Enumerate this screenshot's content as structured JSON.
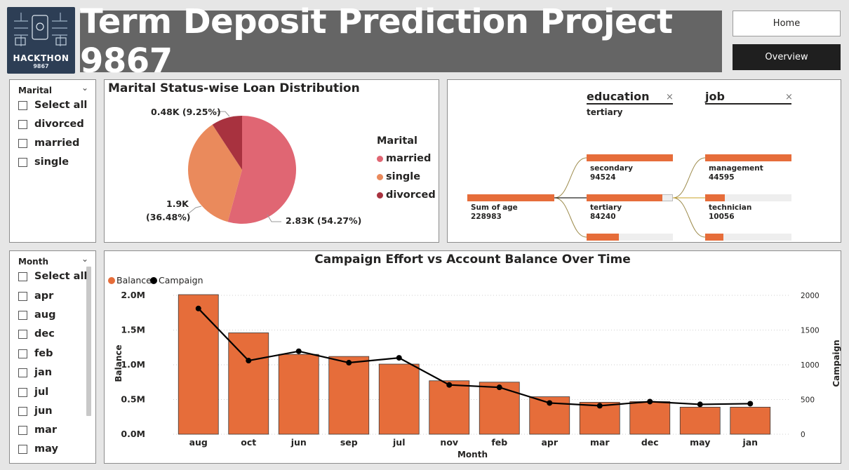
{
  "header": {
    "logo_text": "HACKTHON",
    "logo_sub": "9867",
    "title": "Term Deposit Prediction Project 9867",
    "nav": [
      {
        "label": "Home"
      },
      {
        "label": "Overview"
      }
    ]
  },
  "marital_slicer": {
    "title": "Marital",
    "items": [
      "Select all",
      "divorced",
      "married",
      "single"
    ]
  },
  "month_slicer": {
    "title": "Month",
    "items": [
      "Select all",
      "apr",
      "aug",
      "dec",
      "feb",
      "jan",
      "jul",
      "jun",
      "mar",
      "may"
    ]
  },
  "pie": {
    "title": "Marital Status-wise Loan Distribution",
    "legend_title": "Marital",
    "labels": {
      "married": "2.83K (54.27%)",
      "single_line1": "1.9K",
      "single_line2": "(36.48%)",
      "divorced": "0.48K (9.25%)"
    },
    "chart_data": {
      "type": "pie",
      "slices": [
        {
          "name": "married",
          "value": 2.83,
          "percent": 54.27,
          "color": "#e06673"
        },
        {
          "name": "single",
          "value": 1.9,
          "percent": 36.48,
          "color": "#ea8a5c"
        },
        {
          "name": "divorced",
          "value": 0.48,
          "percent": 9.25,
          "color": "#a8323f"
        }
      ]
    }
  },
  "decomp": {
    "levels": [
      {
        "name": "education",
        "filter": "tertiary"
      },
      {
        "name": "job",
        "filter": ""
      }
    ],
    "root": {
      "label": "Sum of age",
      "value": "228983",
      "fill": 1.0
    },
    "education_nodes": [
      {
        "label": "",
        "value": "",
        "fill": 1.0
      },
      {
        "label": "secondary",
        "value": "94524",
        "fill": 1.0
      },
      {
        "label": "tertiary",
        "value": "84240",
        "fill": 0.89
      },
      {
        "label": "",
        "value": "",
        "fill": 0.37
      }
    ],
    "job_nodes": [
      {
        "label": "",
        "value": "",
        "fill": 1.0
      },
      {
        "label": "management",
        "value": "44595",
        "fill": 1.0
      },
      {
        "label": "technician",
        "value": "10056",
        "fill": 0.23
      },
      {
        "label": "",
        "value": "",
        "fill": 0.21
      }
    ]
  },
  "combo": {
    "title": "Campaign Effort vs Account Balance Over Time",
    "legend": [
      {
        "name": "Balance",
        "color": "#e66d3a"
      },
      {
        "name": "Campaign",
        "color": "#000000"
      }
    ],
    "chart_data": {
      "type": "bar",
      "categories": [
        "aug",
        "oct",
        "jun",
        "sep",
        "jul",
        "nov",
        "feb",
        "apr",
        "mar",
        "dec",
        "may",
        "jan"
      ],
      "series": [
        {
          "name": "Balance",
          "values": [
            2.01,
            1.46,
            1.15,
            1.12,
            1.01,
            0.77,
            0.75,
            0.54,
            0.46,
            0.47,
            0.39,
            0.39
          ],
          "unit": "M",
          "axis": "left"
        },
        {
          "name": "Campaign",
          "values": [
            1810,
            1060,
            1195,
            1030,
            1100,
            710,
            675,
            450,
            410,
            470,
            430,
            440
          ],
          "axis": "right"
        }
      ],
      "xlabel": "Month",
      "ylabel": "Balance",
      "y2label": "Campaign",
      "ylim": [
        0,
        2.0
      ],
      "y2lim": [
        0,
        2000
      ],
      "yticks": [
        "0.0M",
        "0.5M",
        "1.0M",
        "1.5M",
        "2.0M"
      ],
      "y2ticks": [
        "0",
        "500",
        "1000",
        "1500",
        "2000"
      ]
    }
  }
}
